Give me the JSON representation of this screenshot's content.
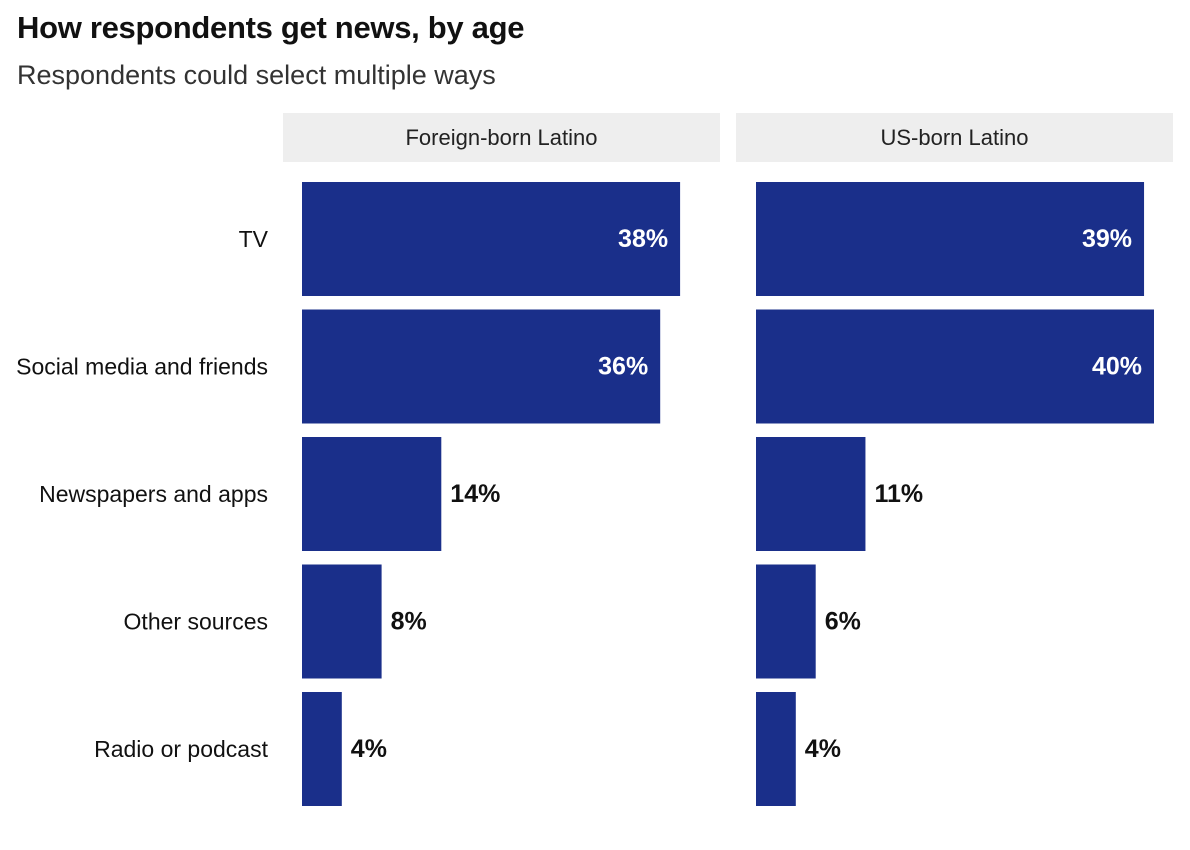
{
  "chart_data": {
    "type": "bar",
    "orientation": "horizontal",
    "title": "How respondents get news, by age",
    "subtitle": "Respondents could select multiple ways",
    "categories": [
      "TV",
      "Social media and friends",
      "Newspapers and apps",
      "Other sources",
      "Radio or podcast"
    ],
    "value_suffix": "%",
    "xlim": [
      0,
      40
    ],
    "grid": false,
    "facets": [
      {
        "name": "Foreign-born Latino",
        "values": [
          38,
          36,
          14,
          8,
          4
        ]
      },
      {
        "name": "US-born Latino",
        "values": [
          39,
          40,
          11,
          6,
          4
        ]
      }
    ],
    "colors": {
      "bar": "#1a2f8a",
      "facet_header_bg": "#eeeeee",
      "label_inside": "#ffffff",
      "label_outside": "#111111"
    }
  }
}
